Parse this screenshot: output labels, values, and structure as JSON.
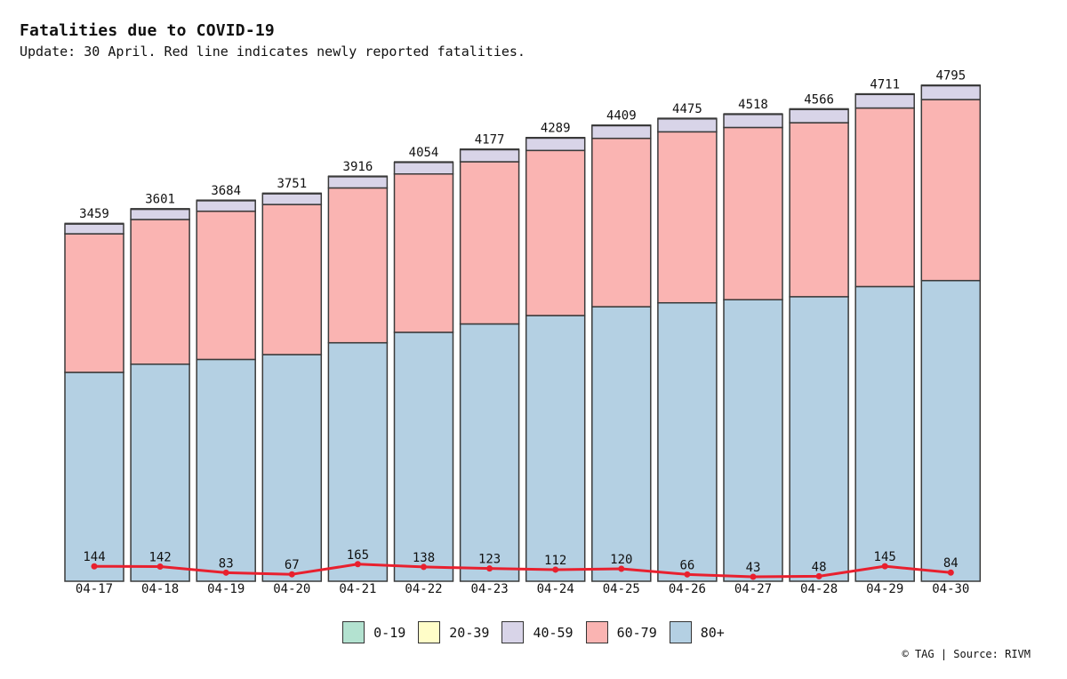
{
  "title": "Fatalities due to COVID-19",
  "subtitle": "Update: 30 April. Red line indicates newly reported fatalities.",
  "source": "© TAG | Source: RIVM",
  "colors": {
    "0-19": "#b3e2d0",
    "20-39": "#fffdc8",
    "40-59": "#d8d4e8",
    "60-79": "#fab4b2",
    "80+": "#b4d0e3",
    "line": "#e8202e",
    "outline": "#3a3a3a"
  },
  "chart_data": {
    "type": "bar",
    "stacked": true,
    "categories": [
      "04-17",
      "04-18",
      "04-19",
      "04-20",
      "04-21",
      "04-22",
      "04-23",
      "04-24",
      "04-25",
      "04-26",
      "04-27",
      "04-28",
      "04-29",
      "04-30"
    ],
    "totals": [
      3459,
      3601,
      3684,
      3751,
      3916,
      4054,
      4177,
      4289,
      4409,
      4475,
      4518,
      4566,
      4711,
      4795
    ],
    "series": [
      {
        "name": "0-19",
        "values": [
          1,
          1,
          1,
          1,
          1,
          1,
          1,
          1,
          1,
          1,
          1,
          1,
          1,
          1
        ]
      },
      {
        "name": "20-39",
        "values": [
          7,
          7,
          7,
          7,
          7,
          7,
          7,
          7,
          7,
          7,
          7,
          7,
          7,
          7
        ]
      },
      {
        "name": "40-59",
        "values": [
          94,
          98,
          101,
          103,
          108,
          111,
          116,
          119,
          122,
          125,
          126,
          128,
          131,
          133
        ]
      },
      {
        "name": "60-79",
        "values": [
          1339,
          1398,
          1432,
          1450,
          1496,
          1530,
          1567,
          1595,
          1627,
          1652,
          1664,
          1681,
          1725,
          1749
        ]
      },
      {
        "name": "80+",
        "values": [
          2018,
          2097,
          2143,
          2190,
          2304,
          2405,
          2486,
          2567,
          2652,
          2690,
          2720,
          2749,
          2847,
          2905
        ]
      }
    ],
    "line": {
      "values": [
        144,
        142,
        83,
        67,
        165,
        138,
        123,
        112,
        120,
        66,
        43,
        48,
        145,
        84
      ]
    },
    "ylim": [
      0,
      4800
    ],
    "grid": false,
    "legend_placement": "bottom-center"
  }
}
